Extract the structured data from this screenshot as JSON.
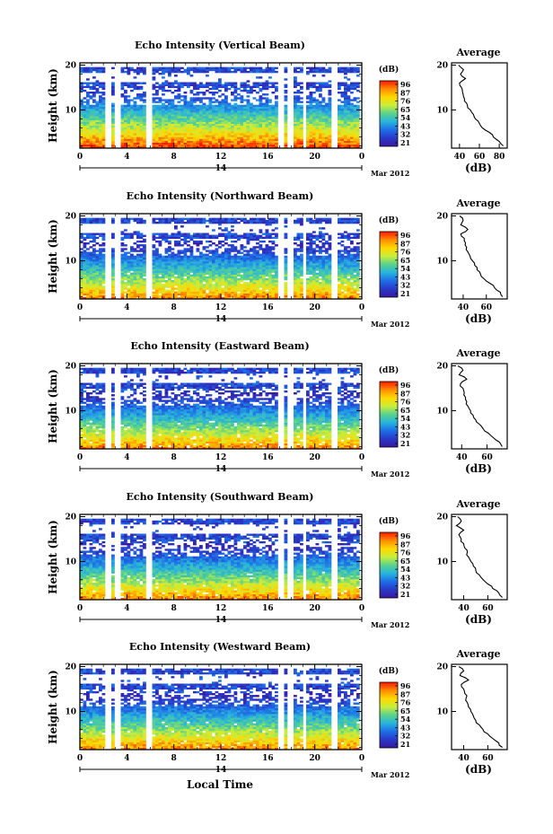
{
  "xlabel_shared": "Local Time",
  "colorbar_unit": "(dB)",
  "colorbar_ticks": [
    "96",
    "87",
    "76",
    "65",
    "54",
    "43",
    "32",
    "21"
  ],
  "colorbar_colors": [
    "#ff1800",
    "#ff8c00",
    "#ffd800",
    "#c8ee3c",
    "#5ad28c",
    "#28b4dc",
    "#1e6ee6",
    "#2838c8",
    "#3a1aa0"
  ],
  "date_tick": "14",
  "date_label": "Mar 2012",
  "panels": [
    {
      "title": "Echo Intensity (Vertical Beam)",
      "avg_title": "Average",
      "avg_xticks": [
        "40",
        "60",
        "80"
      ],
      "avg_xlim": [
        32,
        88
      ]
    },
    {
      "title": "Echo Intensity (Northward Beam)",
      "avg_title": "Average",
      "avg_xticks": [
        "40",
        "60"
      ],
      "avg_xlim": [
        30,
        78
      ]
    },
    {
      "title": "Echo Intensity (Eastward Beam)",
      "avg_title": "Average",
      "avg_xticks": [
        "40",
        "60"
      ],
      "avg_xlim": [
        32,
        76
      ]
    },
    {
      "title": "Echo Intensity (Southward Beam)",
      "avg_title": "Average",
      "avg_xticks": [
        "40",
        "60"
      ],
      "avg_xlim": [
        30,
        76
      ]
    },
    {
      "title": "Echo Intensity (Westward Beam)",
      "avg_title": "Average",
      "avg_xticks": [
        "40",
        "60"
      ],
      "avg_xlim": [
        30,
        76
      ]
    }
  ],
  "chart_data": {
    "type": "heatmap",
    "title": "",
    "xlabel": "Local Time",
    "ylabel": "Height (km)",
    "xticks": [
      "0",
      "4",
      "8",
      "12",
      "16",
      "20",
      "0"
    ],
    "xlim": [
      0,
      24
    ],
    "yticks": [
      "10",
      "20"
    ],
    "ylim": [
      1.5,
      20.5
    ],
    "colorbar": {
      "unit": "(dB)",
      "ticks": [
        96,
        87,
        76,
        65,
        54,
        43,
        32,
        21
      ]
    },
    "data_gaps_hours": [
      [
        2.0,
        2.5
      ],
      [
        2.9,
        3.4
      ],
      [
        5.6,
        5.9
      ],
      [
        16.8,
        17.2
      ],
      [
        17.6,
        18.0
      ],
      [
        18.9,
        19.2
      ],
      [
        21.4,
        21.7
      ]
    ],
    "profiles": [
      {
        "name": "Vertical Beam",
        "xlabel": "(dB)",
        "height_km": [
          2,
          3,
          4,
          5,
          6,
          7,
          8,
          9,
          10,
          11,
          12,
          13,
          14,
          15,
          16,
          17,
          18,
          19,
          20
        ],
        "avg_db": [
          84,
          80,
          74,
          70,
          63,
          60,
          56,
          54,
          51,
          48,
          45,
          44,
          43,
          42,
          40,
          46,
          41,
          44,
          39
        ]
      },
      {
        "name": "Northward Beam",
        "xlabel": "(dB)",
        "height_km": [
          2,
          3,
          4,
          5,
          6,
          7,
          8,
          9,
          10,
          11,
          12,
          13,
          14,
          15,
          16,
          17,
          18,
          19,
          20
        ],
        "avg_db": [
          74,
          72,
          67,
          63,
          58,
          55,
          52,
          50,
          48,
          46,
          44,
          43,
          42,
          41,
          38,
          44,
          38,
          40,
          37
        ]
      },
      {
        "name": "Eastward Beam",
        "xlabel": "(dB)",
        "height_km": [
          2,
          3,
          4,
          5,
          6,
          7,
          8,
          9,
          10,
          11,
          12,
          13,
          14,
          15,
          16,
          17,
          18,
          19,
          20
        ],
        "avg_db": [
          72,
          70,
          65,
          61,
          57,
          54,
          51,
          49,
          47,
          45,
          44,
          43,
          42,
          41,
          39,
          44,
          38,
          41,
          37
        ]
      },
      {
        "name": "Southward Beam",
        "xlabel": "(dB)",
        "height_km": [
          2,
          3,
          4,
          5,
          6,
          7,
          8,
          9,
          10,
          11,
          12,
          13,
          14,
          15,
          16,
          17,
          18,
          19,
          20
        ],
        "avg_db": [
          72,
          69,
          64,
          60,
          56,
          53,
          50,
          48,
          46,
          44,
          43,
          41,
          40,
          38,
          36,
          40,
          34,
          38,
          35
        ]
      },
      {
        "name": "Westward Beam",
        "xlabel": "(dB)",
        "height_km": [
          2,
          3,
          4,
          5,
          6,
          7,
          8,
          9,
          10,
          11,
          12,
          13,
          14,
          15,
          16,
          17,
          18,
          19,
          20
        ],
        "avg_db": [
          72,
          69,
          64,
          60,
          56,
          53,
          50,
          48,
          46,
          44,
          43,
          42,
          41,
          40,
          38,
          44,
          37,
          40,
          36
        ]
      }
    ]
  }
}
